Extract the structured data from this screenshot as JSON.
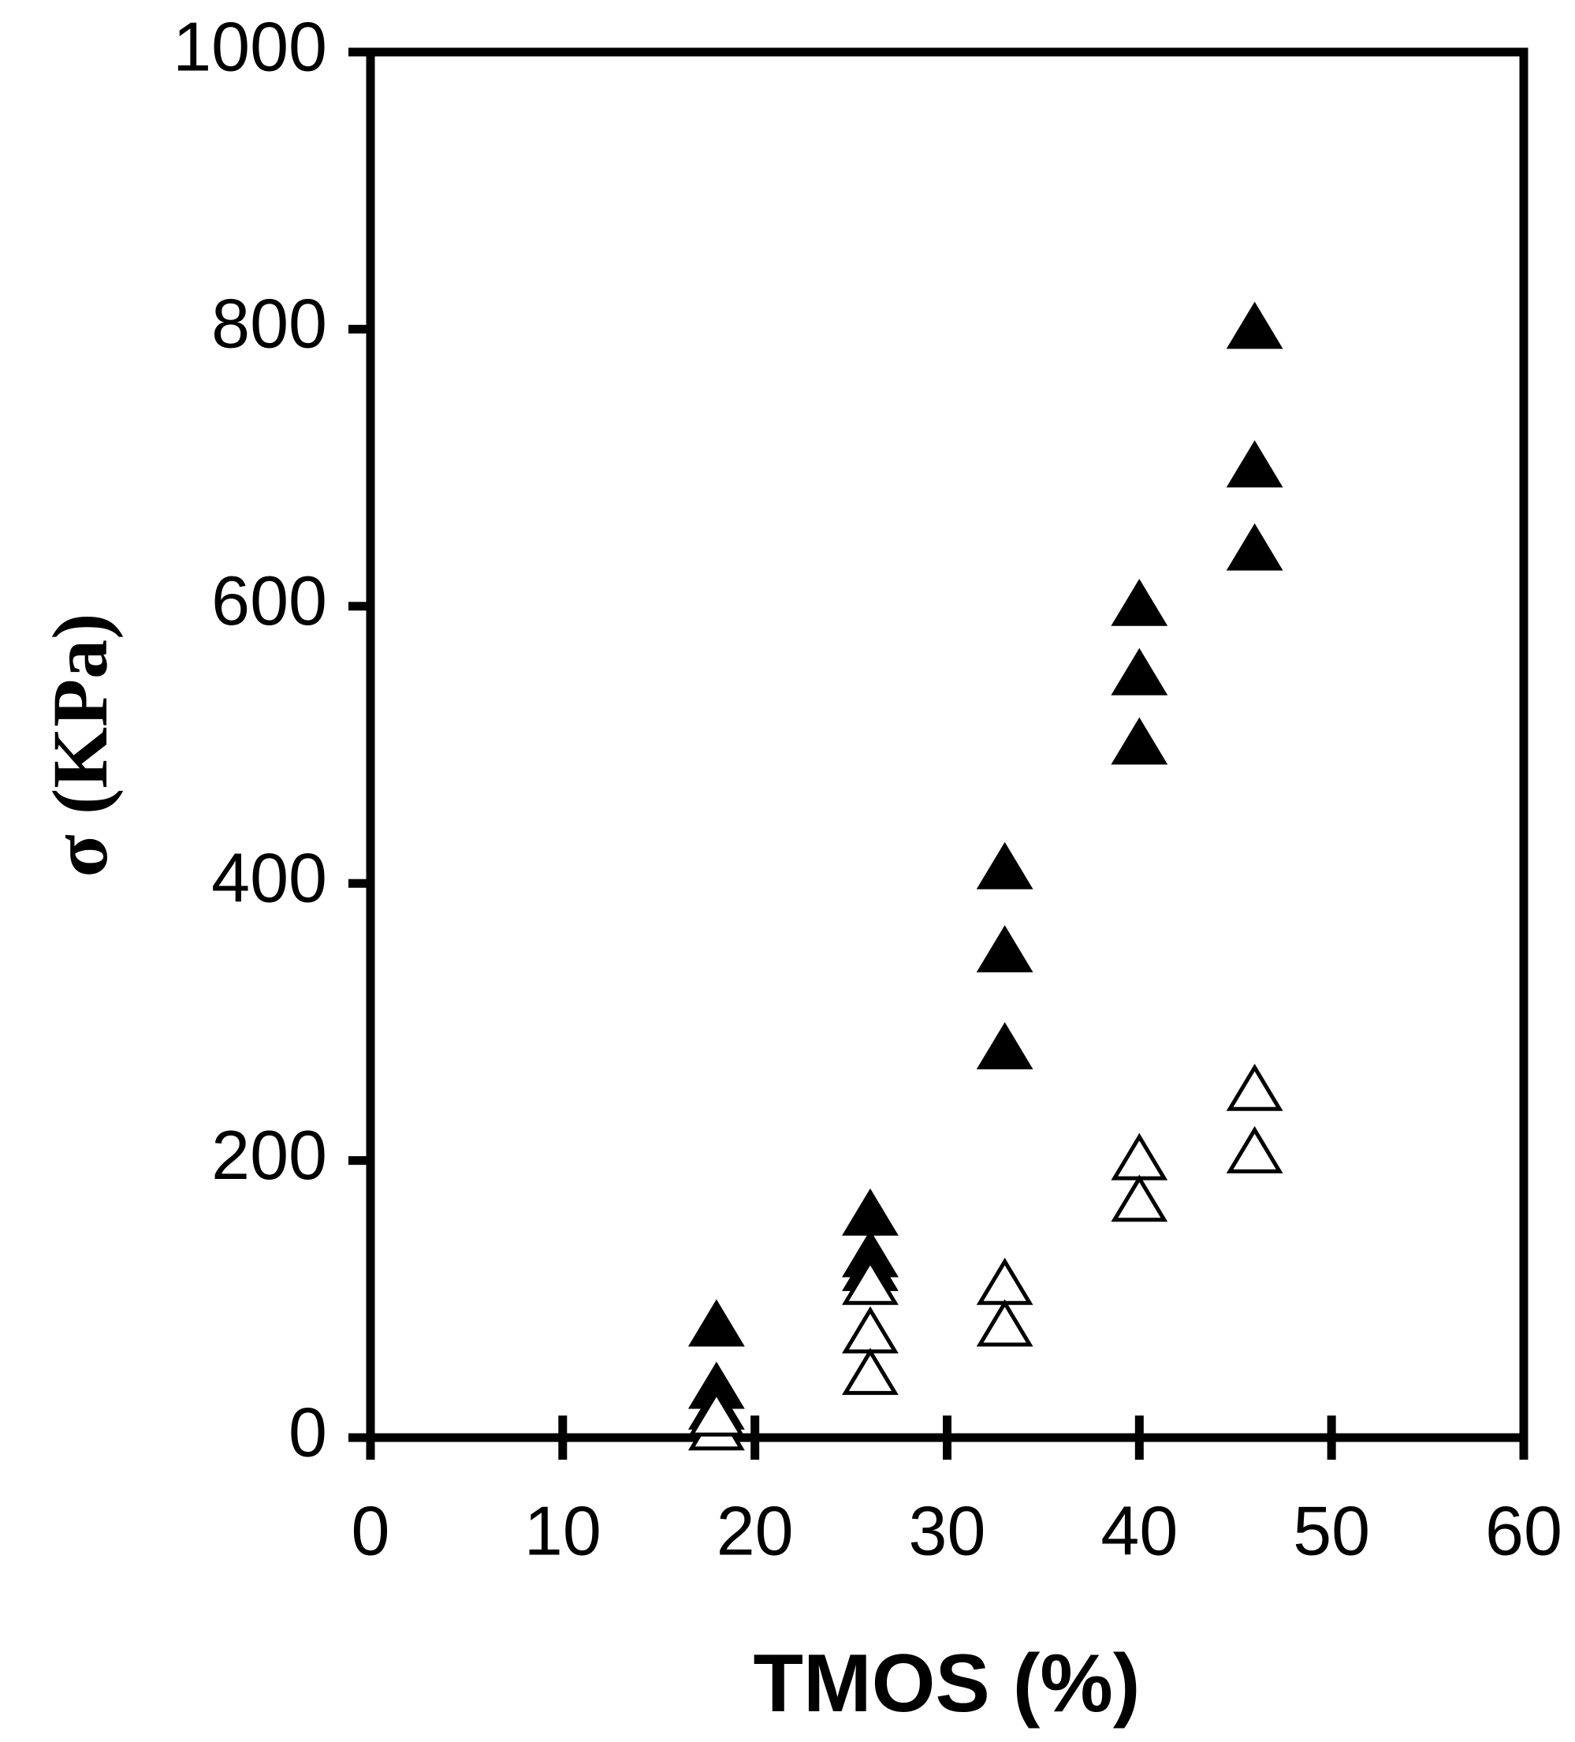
{
  "chart_data": {
    "type": "scatter",
    "xlabel": "TMOS (%)",
    "ylabel": "σ (KPa)",
    "xlim": [
      0,
      60
    ],
    "xticks": [
      0,
      10,
      20,
      30,
      40,
      50,
      60
    ],
    "ylim": [
      0,
      1000
    ],
    "yticks": [
      0,
      200,
      400,
      600,
      800,
      1000
    ],
    "grid": false,
    "marker": "triangle",
    "series": [
      {
        "color": "#000000",
        "filled": true,
        "x": [
          18,
          18,
          18,
          26,
          26,
          26,
          33,
          33,
          33,
          40,
          40,
          40,
          46,
          46,
          46
        ],
        "values": [
          80,
          35,
          20,
          160,
          130,
          120,
          410,
          350,
          280,
          600,
          550,
          500,
          800,
          700,
          640
        ]
      },
      {
        "color": "#000000",
        "filled": false,
        "x": [
          18,
          18,
          26,
          26,
          26,
          33,
          33,
          40,
          40,
          46,
          46
        ],
        "values": [
          5,
          15,
          110,
          75,
          45,
          110,
          80,
          200,
          170,
          250,
          205
        ]
      }
    ]
  }
}
